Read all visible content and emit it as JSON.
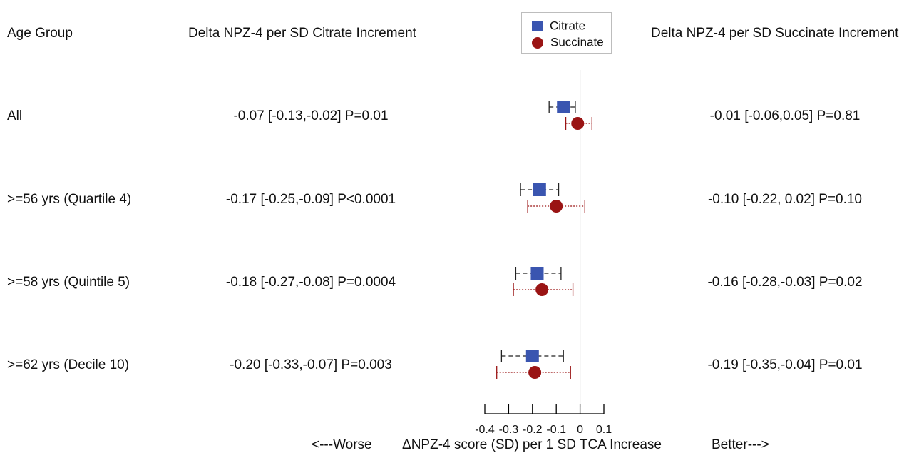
{
  "headers": {
    "age_group": "Age Group",
    "citrate": "Delta NPZ-4 per SD Citrate Increment",
    "succinate": "Delta NPZ-4 per SD Succinate Increment"
  },
  "legend": [
    {
      "label": "Citrate",
      "color": "#3a55b0",
      "marker": "square"
    },
    {
      "label": "Succinate",
      "color": "#9a1414",
      "marker": "circle"
    }
  ],
  "rows": [
    {
      "label": "All",
      "citrate_text": "-0.07 [-0.13,-0.02] P=0.01",
      "succinate_text": "-0.01 [-0.06,0.05] P=0.81"
    },
    {
      "label": ">=56 yrs (Quartile 4)",
      "citrate_text": "-0.17 [-0.25,-0.09] P<0.0001",
      "succinate_text": "-0.10 [-0.22, 0.02] P=0.10"
    },
    {
      "label": ">=58 yrs (Quintile 5)",
      "citrate_text": "-0.18 [-0.27,-0.08] P=0.0004",
      "succinate_text": "-0.16 [-0.28,-0.03] P=0.02"
    },
    {
      "label": ">=62 yrs (Decile 10)",
      "citrate_text": "-0.20 [-0.33,-0.07] P=0.003",
      "succinate_text": "-0.19 [-0.35,-0.04] P=0.01"
    }
  ],
  "footer": {
    "worse": "<---Worse",
    "axis_label": "ΔNPZ-4 score (SD) per 1 SD TCA Increase",
    "better": "Better--->"
  },
  "chart_data": {
    "type": "forest",
    "xlabel": "ΔNPZ-4 score (SD) per 1 SD TCA Increase",
    "xlim": [
      -0.4,
      0.1
    ],
    "xticks": [
      -0.4,
      -0.3,
      -0.2,
      -0.1,
      0,
      0.1
    ],
    "xtick_labels": [
      "-0.4",
      "-0.3",
      "-0.2",
      "-0.1",
      "0",
      "0.1"
    ],
    "reference_line": 0,
    "categories": [
      "All",
      ">=56 yrs (Quartile 4)",
      ">=58 yrs (Quintile 5)",
      ">=62 yrs (Decile 10)"
    ],
    "series": [
      {
        "name": "Citrate",
        "color": "#3a55b0",
        "marker": "square",
        "line_style": "dashed",
        "estimate": [
          -0.07,
          -0.17,
          -0.18,
          -0.2
        ],
        "lower": [
          -0.13,
          -0.25,
          -0.27,
          -0.33
        ],
        "upper": [
          -0.02,
          -0.09,
          -0.08,
          -0.07
        ]
      },
      {
        "name": "Succinate",
        "color": "#9a1414",
        "marker": "circle",
        "line_style": "dotted",
        "estimate": [
          -0.01,
          -0.1,
          -0.16,
          -0.19
        ],
        "lower": [
          -0.06,
          -0.22,
          -0.28,
          -0.35
        ],
        "upper": [
          0.05,
          0.02,
          -0.03,
          -0.04
        ]
      }
    ]
  }
}
